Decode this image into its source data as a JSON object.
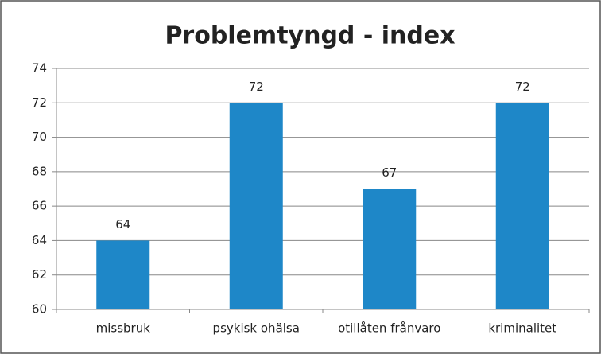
{
  "chart_data": {
    "type": "bar",
    "title": "Problemtyngd - index",
    "categories": [
      "missbruk",
      "psykisk ohälsa",
      "otillåten frånvaro",
      "kriminalitet"
    ],
    "values": [
      64,
      72,
      67,
      72
    ],
    "color": "#1e87c8",
    "ylim": [
      60,
      74
    ],
    "yticks": [
      60,
      62,
      64,
      66,
      68,
      70,
      72,
      74
    ],
    "grid": true
  }
}
